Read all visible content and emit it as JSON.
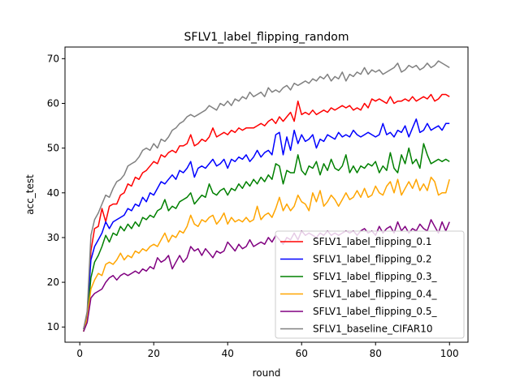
{
  "chart_data": {
    "type": "line",
    "title": "SFLV1_label_flipping_random",
    "xlabel": "round",
    "ylabel": "acc_test",
    "xlim": [
      -4,
      105
    ],
    "ylim": [
      6.6,
      72.6
    ],
    "xticks": [
      0,
      20,
      40,
      60,
      80,
      100
    ],
    "yticks": [
      10,
      20,
      30,
      40,
      50,
      60,
      70
    ],
    "grid": false,
    "legend_position": "lower-right",
    "x_start": 1,
    "series": [
      {
        "name": "SFLV1_label_flipping_0.1",
        "color": "#ff0000",
        "values": [
          9.5,
          13.0,
          27.0,
          32.0,
          32.5,
          36.5,
          33.5,
          37.0,
          37.5,
          37.5,
          39.5,
          40.0,
          42.0,
          41.5,
          43.5,
          43.0,
          44.5,
          45.0,
          46.0,
          47.0,
          46.5,
          48.5,
          48.0,
          49.0,
          49.5,
          49.0,
          50.5,
          50.5,
          51.0,
          53.0,
          50.5,
          51.0,
          52.0,
          51.5,
          52.5,
          54.5,
          52.5,
          53.0,
          53.5,
          53.0,
          54.0,
          53.5,
          54.5,
          54.0,
          54.5,
          54.5,
          54.5,
          55.0,
          55.5,
          55.0,
          56.0,
          56.5,
          55.5,
          57.0,
          56.0,
          57.0,
          58.0,
          56.0,
          60.5,
          57.5,
          58.0,
          57.5,
          58.5,
          57.5,
          58.0,
          58.5,
          58.0,
          59.0,
          58.5,
          59.0,
          59.5,
          59.0,
          59.5,
          58.5,
          59.0,
          58.5,
          60.0,
          59.0,
          61.0,
          60.5,
          61.0,
          60.5,
          60.0,
          61.5,
          60.0,
          60.5,
          60.5,
          61.0,
          60.5,
          61.5,
          60.5,
          61.0,
          61.5,
          61.0,
          62.0,
          60.5,
          61.0,
          62.0,
          62.0,
          61.5
        ]
      },
      {
        "name": "SFLV1_label_flipping_0.2",
        "color": "#0000ff",
        "values": [
          9.5,
          12.5,
          25.0,
          28.0,
          29.5,
          31.0,
          33.5,
          32.0,
          33.5,
          34.0,
          34.5,
          35.0,
          36.5,
          36.0,
          37.5,
          37.0,
          39.0,
          38.0,
          40.0,
          39.5,
          41.0,
          42.5,
          42.0,
          43.0,
          44.0,
          43.0,
          45.0,
          44.5,
          45.5,
          47.0,
          43.5,
          45.5,
          46.0,
          45.5,
          46.5,
          47.5,
          46.0,
          46.5,
          47.5,
          45.5,
          47.5,
          47.0,
          48.0,
          47.5,
          48.5,
          47.0,
          48.0,
          49.5,
          48.0,
          49.0,
          49.5,
          48.5,
          53.0,
          53.5,
          48.5,
          52.5,
          49.5,
          54.0,
          51.0,
          53.0,
          51.5,
          52.0,
          53.0,
          50.0,
          52.0,
          51.5,
          53.0,
          52.5,
          52.0,
          53.5,
          52.5,
          53.0,
          52.5,
          54.0,
          53.0,
          52.5,
          53.0,
          53.5,
          53.0,
          52.5,
          53.0,
          55.5,
          53.0,
          53.5,
          52.5,
          54.0,
          53.5,
          55.0,
          52.5,
          54.5,
          56.5,
          53.5,
          54.0,
          55.5,
          54.0,
          54.5,
          55.0,
          54.0,
          55.5,
          55.5
        ]
      },
      {
        "name": "SFLV1_label_flipping_0.3_",
        "color": "#008000",
        "values": [
          9.0,
          12.0,
          21.0,
          24.5,
          26.0,
          28.0,
          30.5,
          29.0,
          31.0,
          30.5,
          32.5,
          31.5,
          33.0,
          32.0,
          33.5,
          32.5,
          34.5,
          34.0,
          35.0,
          34.5,
          36.0,
          36.5,
          38.5,
          36.0,
          37.0,
          36.5,
          38.0,
          38.5,
          39.0,
          40.0,
          37.5,
          38.5,
          39.5,
          39.0,
          42.0,
          40.0,
          39.5,
          40.5,
          41.0,
          39.5,
          41.0,
          40.5,
          42.0,
          41.0,
          42.5,
          41.5,
          43.0,
          42.0,
          43.5,
          42.5,
          44.0,
          43.0,
          46.5,
          46.0,
          42.0,
          45.0,
          44.5,
          44.5,
          48.5,
          45.0,
          44.0,
          46.0,
          45.5,
          47.0,
          44.0,
          46.5,
          45.0,
          47.5,
          45.5,
          45.0,
          46.0,
          48.5,
          44.5,
          46.0,
          44.5,
          46.0,
          45.5,
          46.5,
          46.0,
          47.0,
          44.5,
          46.0,
          45.0,
          49.0,
          45.5,
          44.5,
          48.5,
          46.5,
          50.0,
          46.5,
          47.5,
          45.5,
          51.0,
          48.5,
          46.5,
          47.0,
          47.5,
          47.0,
          47.5,
          47.0
        ]
      },
      {
        "name": "SFLV1_label_flipping_0.4_",
        "color": "#ffa500",
        "values": [
          9.0,
          12.0,
          18.5,
          20.5,
          22.0,
          21.5,
          24.0,
          24.5,
          24.0,
          25.0,
          26.5,
          25.0,
          26.0,
          25.5,
          27.0,
          26.5,
          27.5,
          27.0,
          28.0,
          28.5,
          28.0,
          29.5,
          31.0,
          29.0,
          30.5,
          30.0,
          31.5,
          31.0,
          32.5,
          35.0,
          33.0,
          32.5,
          34.0,
          33.5,
          34.5,
          35.0,
          33.0,
          34.0,
          35.5,
          33.0,
          34.5,
          33.5,
          34.0,
          33.5,
          34.5,
          33.5,
          34.0,
          37.0,
          34.0,
          35.0,
          35.5,
          34.5,
          36.5,
          39.0,
          36.0,
          37.5,
          36.0,
          37.0,
          39.5,
          38.0,
          37.5,
          36.0,
          40.0,
          38.0,
          40.5,
          37.0,
          38.0,
          39.5,
          38.5,
          37.0,
          38.5,
          40.0,
          38.5,
          39.0,
          40.5,
          39.0,
          41.0,
          39.0,
          39.5,
          41.5,
          40.0,
          39.5,
          41.5,
          42.5,
          40.0,
          43.0,
          39.5,
          41.0,
          42.5,
          41.0,
          43.0,
          40.5,
          42.0,
          40.5,
          43.5,
          42.5,
          39.5,
          40.0,
          40.0,
          43.0
        ]
      },
      {
        "name": "SFLV1_label_flipping_0.5_",
        "color": "#800080",
        "values": [
          9.0,
          11.0,
          16.5,
          17.5,
          18.0,
          18.5,
          20.0,
          21.0,
          21.5,
          20.5,
          21.5,
          22.0,
          21.5,
          22.0,
          22.5,
          22.0,
          23.0,
          22.5,
          23.5,
          23.0,
          25.5,
          24.5,
          25.0,
          26.0,
          23.0,
          24.5,
          26.0,
          24.5,
          25.5,
          28.0,
          27.0,
          27.5,
          26.0,
          27.5,
          26.5,
          25.5,
          27.0,
          26.5,
          27.0,
          29.0,
          28.0,
          27.0,
          28.5,
          27.5,
          28.0,
          29.5,
          28.0,
          28.5,
          29.0,
          28.5,
          30.0,
          29.0,
          30.5,
          29.5,
          28.5,
          30.0,
          29.5,
          31.0,
          29.5,
          31.5,
          30.5,
          31.0,
          30.5,
          30.0,
          31.0,
          30.5,
          31.5,
          30.5,
          31.0,
          30.5,
          31.0,
          31.5,
          31.0,
          31.5,
          30.5,
          31.5,
          32.0,
          31.0,
          31.5,
          30.5,
          32.5,
          31.0,
          32.0,
          32.5,
          31.0,
          33.5,
          31.5,
          32.5,
          31.0,
          32.0,
          31.5,
          33.0,
          32.0,
          31.5,
          34.0,
          32.5,
          31.0,
          33.5,
          31.5,
          33.5
        ]
      },
      {
        "name": "SFLV1_baseline_CIFAR10",
        "color": "#808080",
        "values": [
          9.5,
          13.5,
          30.5,
          34.0,
          35.5,
          37.5,
          39.5,
          39.0,
          41.0,
          42.5,
          43.0,
          44.0,
          46.0,
          46.5,
          47.0,
          48.0,
          49.5,
          50.0,
          49.5,
          51.0,
          50.0,
          52.0,
          51.5,
          52.5,
          54.0,
          54.5,
          55.5,
          56.0,
          57.0,
          57.5,
          57.0,
          57.5,
          58.0,
          58.5,
          59.5,
          59.0,
          58.5,
          60.0,
          59.5,
          60.5,
          59.5,
          61.0,
          60.5,
          61.5,
          61.0,
          62.5,
          61.5,
          62.0,
          62.5,
          61.5,
          63.5,
          62.5,
          63.0,
          62.5,
          63.5,
          64.0,
          63.0,
          64.5,
          64.0,
          64.5,
          65.0,
          64.5,
          65.5,
          65.0,
          66.0,
          65.5,
          66.5,
          65.0,
          66.0,
          65.5,
          67.0,
          65.0,
          66.5,
          66.0,
          67.0,
          66.5,
          68.0,
          66.5,
          67.5,
          67.0,
          67.5,
          66.5,
          67.0,
          67.5,
          68.0,
          69.0,
          67.0,
          67.5,
          68.5,
          68.0,
          68.5,
          67.5,
          68.0,
          69.0,
          68.0,
          68.5,
          69.5,
          69.0,
          68.5,
          68.0
        ]
      }
    ]
  }
}
